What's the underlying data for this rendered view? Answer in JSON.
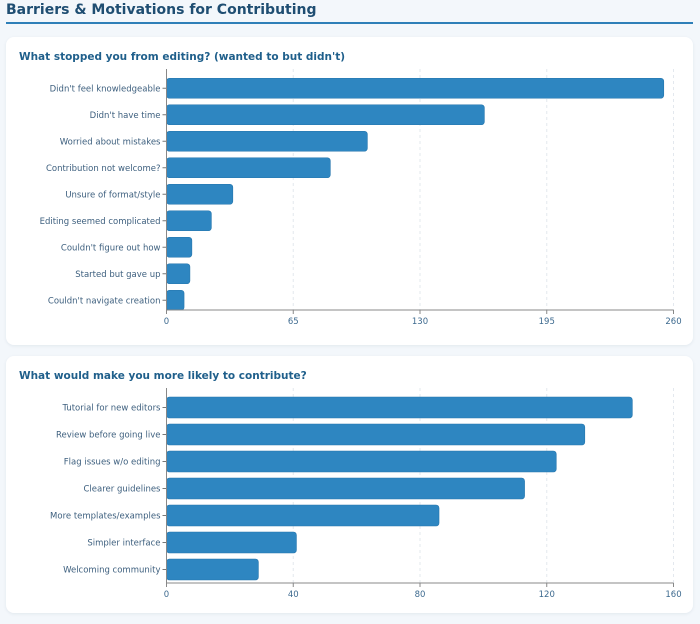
{
  "page": {
    "title": "Barriers & Motivations for Contributing",
    "accent": "#2e7fb8"
  },
  "chart_data": [
    {
      "type": "bar",
      "orientation": "horizontal",
      "title": "What stopped you from editing? (wanted to but didn't)",
      "categories": [
        "Didn't feel knowledgeable",
        "Didn't have time",
        "Worried about mistakes",
        "Contribution not welcome?",
        "Unsure of format/style",
        "Editing seemed complicated",
        "Couldn't figure out how",
        "Started but gave up",
        "Couldn't navigate creation"
      ],
      "values": [
        255,
        163,
        103,
        84,
        34,
        23,
        13,
        12,
        9
      ],
      "xlim": [
        0,
        260
      ],
      "xticks": [
        0,
        65,
        130,
        195,
        260
      ],
      "xlabel": "",
      "ylabel": "",
      "grid": "vertical dashed",
      "color": "#2e86c1"
    },
    {
      "type": "bar",
      "orientation": "horizontal",
      "title": "What would make you more likely to contribute?",
      "categories": [
        "Tutorial for new editors",
        "Review before going live",
        "Flag issues w/o editing",
        "Clearer guidelines",
        "More templates/examples",
        "Simpler interface",
        "Welcoming community"
      ],
      "values": [
        147,
        132,
        123,
        113,
        86,
        41,
        29
      ],
      "xlim": [
        0,
        160
      ],
      "xticks": [
        0,
        40,
        80,
        120,
        160
      ],
      "xlabel": "",
      "ylabel": "",
      "grid": "vertical dashed",
      "color": "#2e86c1"
    }
  ]
}
